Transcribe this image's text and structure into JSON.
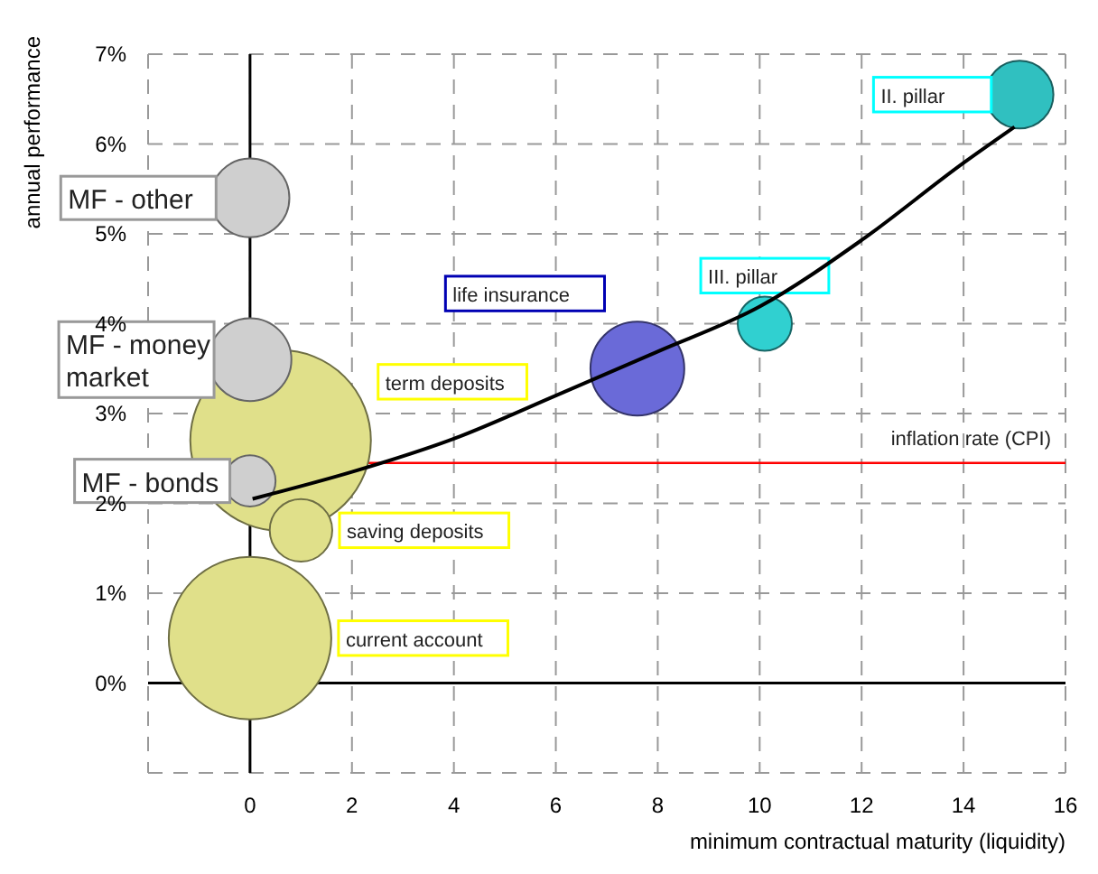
{
  "chart_data": {
    "type": "bubble",
    "xlabel": "minimum contractual maturity (liquidity)",
    "ylabel": "annual performance",
    "xlim": [
      -2,
      16
    ],
    "ylim": [
      -1,
      7
    ],
    "xticks": [
      {
        "value": -2,
        "label": null
      },
      0,
      2,
      4,
      6,
      8,
      10,
      12,
      14,
      16
    ],
    "yticks": [
      {
        "value": -1,
        "label": null
      },
      {
        "value": 0,
        "label": "0%"
      },
      {
        "value": 1,
        "label": "1%"
      },
      {
        "value": 2,
        "label": "2%"
      },
      {
        "value": 3,
        "label": "3%"
      },
      {
        "value": 4,
        "label": "4%"
      },
      {
        "value": 5,
        "label": "5%"
      },
      {
        "value": 6,
        "label": "6%"
      },
      {
        "value": 7,
        "label": "7%"
      }
    ],
    "grid": true,
    "series": [
      {
        "name": "current account",
        "color": "#e0e08a",
        "x": [
          0
        ],
        "values": [
          0.5
        ],
        "sizes": [
          0.81
        ]
      },
      {
        "name": "term deposits",
        "color": "#e0e08a",
        "x": [
          0.6
        ],
        "values": [
          2.7
        ],
        "sizes": [
          1
        ]
      },
      {
        "name": "MF - bonds",
        "color": "#cfcfcf",
        "x": [
          0
        ],
        "values": [
          2.25
        ],
        "sizes": [
          0.08
        ]
      },
      {
        "name": "saving deposits",
        "color": "#e0e08a",
        "x": [
          1
        ],
        "values": [
          1.7
        ],
        "sizes": [
          0.12
        ]
      },
      {
        "name": "MF - money market",
        "color": "#cfcfcf",
        "x": [
          0
        ],
        "values": [
          3.6
        ],
        "sizes": [
          0.21
        ]
      },
      {
        "name": "MF - other",
        "color": "#cfcfcf",
        "x": [
          0
        ],
        "values": [
          5.4
        ],
        "sizes": [
          0.19
        ]
      },
      {
        "name": "life insurance",
        "color": "#6a6ad8",
        "x": [
          7.6
        ],
        "values": [
          3.5
        ],
        "sizes": [
          0.27
        ]
      },
      {
        "name": "III. pillar",
        "color": "#30d0d0",
        "x": [
          10.1
        ],
        "values": [
          4.0
        ],
        "sizes": [
          0.09
        ]
      },
      {
        "name": "II. pillar",
        "color": "#30c0c0",
        "x": [
          15.1
        ],
        "values": [
          6.55
        ],
        "sizes": [
          0.14
        ]
      },
      {
        "type": "line",
        "color": "#000000",
        "marker": "none",
        "x": [
          0.05,
          2,
          4,
          6,
          8,
          10,
          12,
          14,
          15
        ],
        "values": [
          2.05,
          2.35,
          2.72,
          3.2,
          3.69,
          4.19,
          4.93,
          5.79,
          6.19
        ]
      }
    ],
    "ref_lines": [
      {
        "axis": "y",
        "value": 2.45,
        "label": "inflation rate (CPI)",
        "color": "#ff0000"
      }
    ]
  }
}
